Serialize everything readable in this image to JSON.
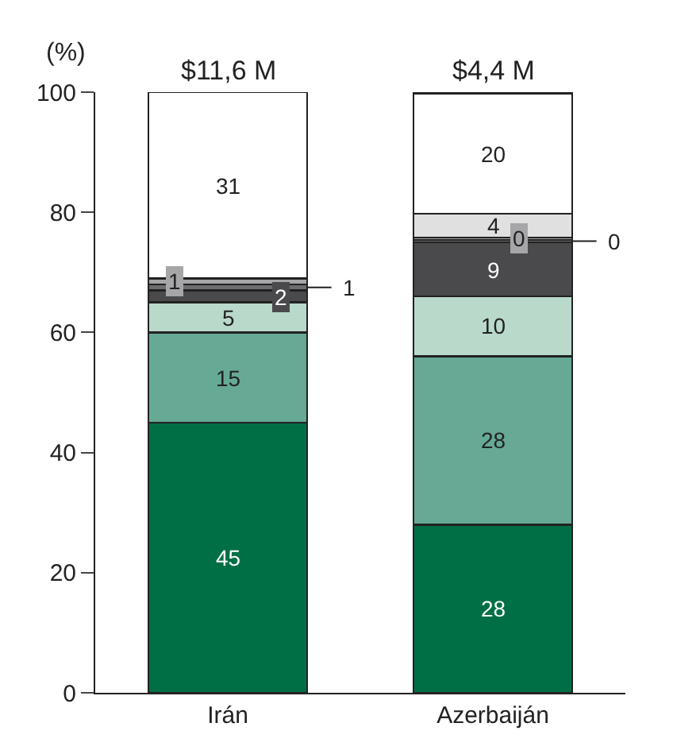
{
  "chart_data": {
    "type": "bar",
    "stacked": true,
    "ylabel": "(%)",
    "categories": [
      "Irán",
      "Azerbaiján"
    ],
    "series": [
      {
        "color": "#006f45",
        "values": [
          45,
          28
        ],
        "value_labels": [
          "45",
          "28"
        ]
      },
      {
        "color": "#66a994",
        "values": [
          15,
          28
        ],
        "value_labels": [
          "15",
          "28"
        ]
      },
      {
        "color": "#b9d9cb",
        "values": [
          5,
          10
        ],
        "value_labels": [
          "5",
          "10"
        ]
      },
      {
        "color": "#4a4a4c",
        "values": [
          2,
          9
        ],
        "value_labels": [
          "2",
          "9"
        ]
      },
      {
        "color": "#6d6d6f",
        "values": [
          1,
          0.4
        ],
        "value_labels": [
          "1",
          "0"
        ]
      },
      {
        "color": "#a6a6a8",
        "values": [
          1,
          0.4
        ],
        "value_labels": [
          "1",
          "0"
        ]
      },
      {
        "color": "#e0e0e0",
        "values": [
          0,
          4
        ],
        "value_labels": [
          null,
          "4"
        ]
      },
      {
        "color": "#ffffff",
        "values": [
          31,
          20
        ],
        "value_labels": [
          "31",
          "20"
        ]
      }
    ],
    "annotations": [
      "$11,6 M",
      "$4,4 M"
    ],
    "ylim": [
      0,
      100
    ],
    "yticks": [
      0,
      20,
      40,
      60,
      80,
      100
    ],
    "grid": false
  }
}
